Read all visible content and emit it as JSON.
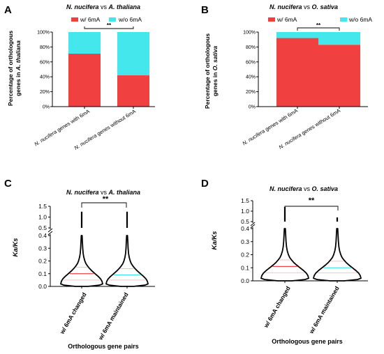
{
  "colors": {
    "w6mA": "#f04040",
    "wo6mA": "#44e8ec",
    "black": "#000000"
  },
  "panels": [
    {
      "letter": "A",
      "title_species_1": "N. nucifera",
      "title_vs": "vs",
      "title_species_2": "A. thaliana",
      "ylabel_line1": "Percentage of  orthologous",
      "ylabel_line2_prefix": "genes in ",
      "ylabel_line2_species": "A. thaliana"
    },
    {
      "letter": "B",
      "title_species_1": "N. nucifera",
      "title_vs": "vs",
      "title_species_2": "O. sativa",
      "ylabel_line1": "Percentage of  orthologous",
      "ylabel_line2_prefix": "genes in ",
      "ylabel_line2_species": "O. sativa"
    },
    {
      "letter": "C",
      "title_species_1": "N. nucifera",
      "title_vs": "vs",
      "title_species_2": "A. thaliana",
      "ylabel": "Ka/Ks",
      "xlabel": "Orthologous gene pairs"
    },
    {
      "letter": "D",
      "title_species_1": "N. nucifera",
      "title_vs": "vs",
      "title_species_2": "O. sativa",
      "ylabel": "Ka/Ks",
      "xlabel": "Orthologous gene pairs"
    }
  ],
  "bar_category_parts": [
    {
      "species": "N. nucifera",
      "rest": " genes with 6mA"
    },
    {
      "species": "N. nucifera",
      "rest": " genes without 6mA"
    }
  ],
  "chart_data": [
    {
      "type": "bar",
      "stacked": true,
      "categories": [
        "N. nucifera genes with 6mA",
        "N. nucifera genes without 6mA"
      ],
      "series": [
        {
          "name": "w/ 6mA",
          "values": [
            71,
            42
          ]
        },
        {
          "name": "w/o 6mA",
          "values": [
            29,
            58
          ]
        }
      ],
      "yticks": [
        "0%",
        "20%",
        "40%",
        "60%",
        "80%",
        "100%"
      ],
      "ylim": [
        0,
        100
      ],
      "significance": "**",
      "legend": "top"
    },
    {
      "type": "bar",
      "stacked": true,
      "categories": [
        "N. nucifera genes with 6mA",
        "N. nucifera genes without 6mA"
      ],
      "series": [
        {
          "name": "w/ 6mA",
          "values": [
            92,
            83
          ]
        },
        {
          "name": "w/o 6mA",
          "values": [
            8,
            17
          ]
        }
      ],
      "yticks": [
        "0%",
        "20%",
        "40%",
        "60%",
        "80%",
        "100%"
      ],
      "ylim": [
        0,
        100
      ],
      "significance": "**",
      "legend": "top"
    },
    {
      "type": "violin",
      "categories": [
        "w/ 6mA changed",
        "w/ 6mA maintained"
      ],
      "medians": [
        0.1,
        0.09
      ],
      "quartiles": [
        [
          0.05,
          0.15
        ],
        [
          0.05,
          0.14
        ]
      ],
      "outlier_max": [
        1.25,
        1.25
      ],
      "yticks_lower": [
        "0.0",
        "0.1",
        "0.2",
        "0.3",
        "0.4"
      ],
      "yticks_upper": [
        "0.5",
        "1.0",
        "1.5"
      ],
      "ylim": [
        0,
        1.5
      ],
      "axis_break": [
        0.4,
        0.5
      ],
      "significance": "**"
    },
    {
      "type": "violin",
      "categories": [
        "w/ 6mA changed",
        "w/ 6mA maintained"
      ],
      "medians": [
        0.11,
        0.1
      ],
      "quartiles": [
        [
          0.06,
          0.16
        ],
        [
          0.06,
          0.15
        ]
      ],
      "outlier_max": [
        1.2,
        0.7
      ],
      "yticks_lower": [
        "0.0",
        "0.1",
        "0.2",
        "0.3",
        "0.4"
      ],
      "yticks_upper": [
        "0.5",
        "1.0",
        "1.5"
      ],
      "ylim": [
        0,
        1.5
      ],
      "axis_break": [
        0.4,
        0.5
      ],
      "significance": "**"
    }
  ]
}
